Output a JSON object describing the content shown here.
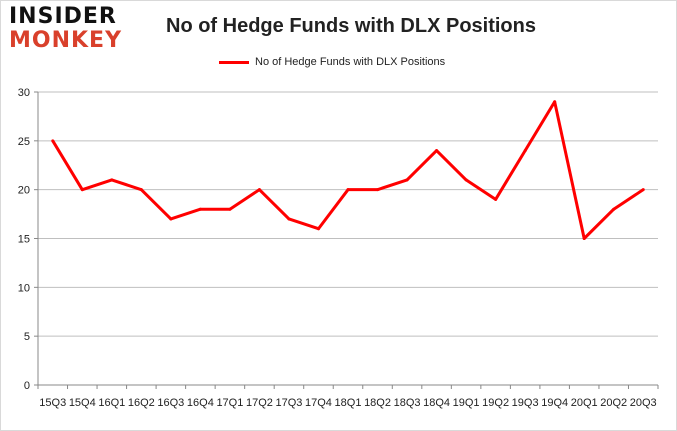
{
  "logo": {
    "line1": "INSIDER",
    "line2": "MONKEY"
  },
  "chart_data": {
    "type": "line",
    "title": "No of Hedge Funds with DLX Positions",
    "categories": [
      "15Q3",
      "15Q4",
      "16Q1",
      "16Q2",
      "16Q3",
      "16Q4",
      "17Q1",
      "17Q2",
      "17Q3",
      "17Q4",
      "18Q1",
      "18Q2",
      "18Q3",
      "18Q4",
      "19Q1",
      "19Q2",
      "19Q3",
      "19Q4",
      "20Q1",
      "20Q2",
      "20Q3"
    ],
    "series": [
      {
        "name": "No of Hedge Funds with DLX Positions",
        "color": "#ff0000",
        "values": [
          25,
          20,
          21,
          20,
          17,
          18,
          18,
          20,
          17,
          16,
          20,
          20,
          21,
          24,
          21,
          19,
          24,
          29,
          15,
          18,
          20
        ]
      }
    ],
    "ylim": [
      0,
      30
    ],
    "yticks": [
      0,
      5,
      10,
      15,
      20,
      25,
      30
    ],
    "grid": true,
    "legend": "top"
  }
}
